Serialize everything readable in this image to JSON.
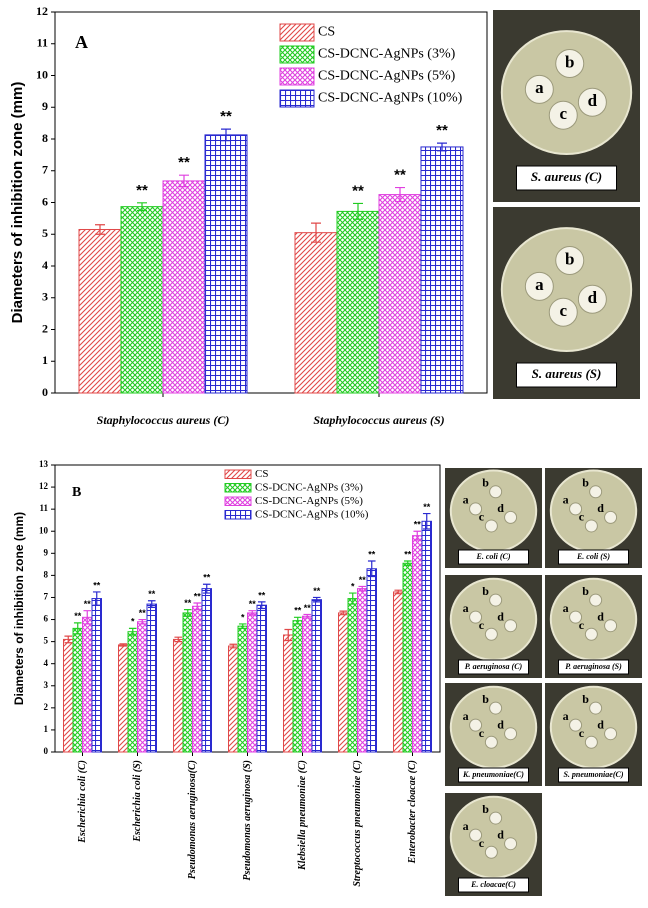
{
  "chart_data": [
    {
      "type": "bar",
      "panel": "A",
      "ylabel": "Diameters of inhibition zone (mm)",
      "categories": [
        "Staphylococcus aureus (C)",
        "Staphylococcus aureus (S)"
      ],
      "series": [
        {
          "name": "CS",
          "color": "#e04848",
          "pattern": "diagonal",
          "values": [
            5.15,
            5.05
          ],
          "errors": [
            0.15,
            0.3
          ],
          "significance": [
            null,
            null
          ]
        },
        {
          "name": "CS-DCNC-AgNPs (3%)",
          "color": "#22cc22",
          "pattern": "crosshatch",
          "values": [
            5.87,
            5.72
          ],
          "errors": [
            0.12,
            0.25
          ],
          "significance": [
            "**",
            "**"
          ]
        },
        {
          "name": "CS-DCNC-AgNPs (5%)",
          "color": "#e040e0",
          "pattern": "crosshatch",
          "values": [
            6.68,
            6.25
          ],
          "errors": [
            0.18,
            0.22
          ],
          "significance": [
            "**",
            "**"
          ]
        },
        {
          "name": "CS-DCNC-AgNPs (10%)",
          "color": "#2a2ad0",
          "pattern": "grid",
          "values": [
            8.13,
            7.75
          ],
          "errors": [
            0.18,
            0.12
          ],
          "significance": [
            "**",
            "**"
          ]
        }
      ],
      "ylim": [
        0,
        12
      ],
      "yticks": [
        0,
        1,
        2,
        3,
        4,
        5,
        6,
        7,
        8,
        9,
        10,
        11,
        12
      ],
      "legend": "upper right"
    },
    {
      "type": "bar",
      "panel": "B",
      "ylabel": "Diameters of inhibition zone (mm)",
      "categories": [
        "Escherichia coli (C)",
        "Escherichia coli (S)",
        "Pseudomonas aeruginosa(C)",
        "Pseudomonas aeruginosa (S)",
        "Klebsiella pneumoniae (C)",
        "Streptococcus pneumoniae (C)",
        "Enterobacter cloacae (C)"
      ],
      "series": [
        {
          "name": "CS",
          "color": "#e04848",
          "pattern": "diagonal",
          "values": [
            5.1,
            4.85,
            5.1,
            4.8,
            5.3,
            6.3,
            7.25
          ],
          "errors": [
            0.15,
            0.05,
            0.1,
            0.08,
            0.25,
            0.08,
            0.08
          ],
          "significance": [
            null,
            null,
            null,
            null,
            null,
            null,
            null
          ]
        },
        {
          "name": "CS-DCNC-AgNPs (3%)",
          "color": "#22cc22",
          "pattern": "crosshatch",
          "values": [
            5.6,
            5.45,
            6.3,
            5.7,
            5.95,
            6.95,
            8.55
          ],
          "errors": [
            0.25,
            0.15,
            0.15,
            0.1,
            0.15,
            0.25,
            0.1
          ],
          "significance": [
            "**",
            "*",
            "**",
            "*",
            "**",
            "*",
            "**"
          ]
        },
        {
          "name": "CS-DCNC-AgNPs (5%)",
          "color": "#e040e0",
          "pattern": "crosshatch",
          "values": [
            6.1,
            5.9,
            6.6,
            6.3,
            6.15,
            7.4,
            9.8
          ],
          "errors": [
            0.3,
            0.1,
            0.15,
            0.1,
            0.08,
            0.1,
            0.2
          ],
          "significance": [
            "**",
            "**",
            "**",
            "**",
            "**",
            "**",
            "**"
          ]
        },
        {
          "name": "CS-DCNC-AgNPs (10%)",
          "color": "#2a2ad0",
          "pattern": "grid",
          "values": [
            6.95,
            6.7,
            7.4,
            6.65,
            6.9,
            8.3,
            10.45
          ],
          "errors": [
            0.3,
            0.15,
            0.2,
            0.15,
            0.1,
            0.35,
            0.35
          ],
          "significance": [
            "**",
            "**",
            "**",
            "**",
            "**",
            "**",
            "**"
          ]
        }
      ],
      "ylim": [
        0,
        13
      ],
      "yticks": [
        0,
        1,
        2,
        3,
        4,
        5,
        6,
        7,
        8,
        9,
        10,
        11,
        12,
        13
      ],
      "legend": "upper center"
    }
  ],
  "photos": [
    {
      "caption": "S. aureus (C)",
      "letters": [
        "a",
        "b",
        "c",
        "d"
      ]
    },
    {
      "caption": "S. aureus (S)",
      "letters": [
        "a",
        "b",
        "c",
        "d"
      ]
    },
    {
      "caption": "E. coli (C)",
      "letters": [
        "a",
        "b",
        "c",
        "d"
      ]
    },
    {
      "caption": "E. coli (S)",
      "letters": [
        "a",
        "b",
        "c",
        "d"
      ]
    },
    {
      "caption": "P. aeruginosa (C)",
      "letters": [
        "a",
        "b",
        "c",
        "d"
      ]
    },
    {
      "caption": "P. aeruginosa (S)",
      "letters": [
        "a",
        "b",
        "c",
        "d"
      ]
    },
    {
      "caption": "K. pneumoniae(C)",
      "letters": [
        "a",
        "b",
        "c",
        "d"
      ]
    },
    {
      "caption": "S. pneumoniae(C)",
      "letters": [
        "a",
        "b",
        "c",
        "d"
      ]
    },
    {
      "caption": "E. cloacae(C)",
      "letters": [
        "a",
        "b",
        "c",
        "d"
      ]
    }
  ]
}
